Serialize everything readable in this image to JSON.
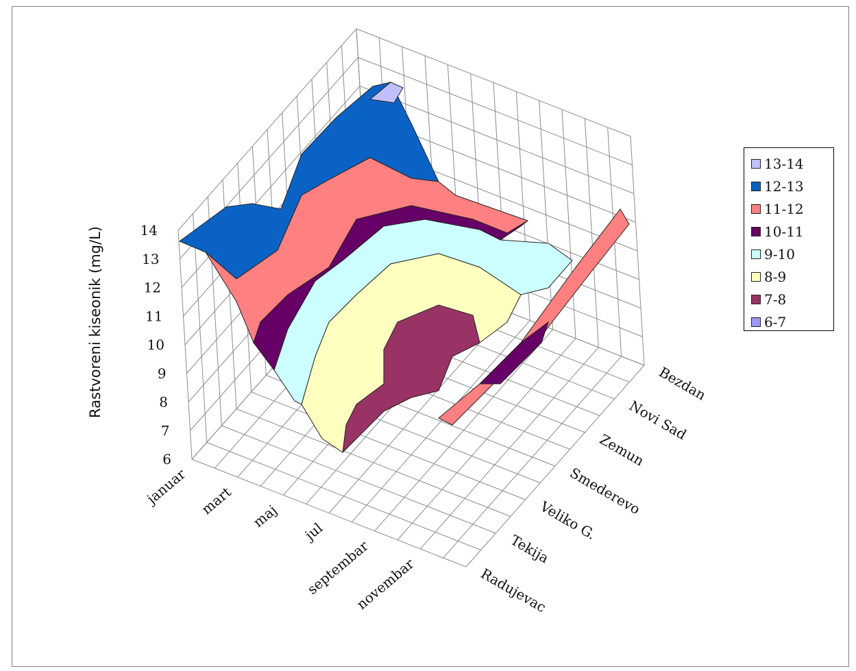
{
  "chart_data": {
    "type": "surface",
    "ylabel": "Rastvoreni kiseonik (mg/L)",
    "zlim": [
      6,
      14
    ],
    "z_ticks": [
      "6",
      "7",
      "8",
      "9",
      "10",
      "11",
      "12",
      "13",
      "14"
    ],
    "month_ticks": [
      "januar",
      "mart",
      "maj",
      "jul",
      "septembar",
      "novembar"
    ],
    "station_ticks": [
      "Bezdan",
      "Novi Sad",
      "Zemun",
      "Smederevo",
      "Veliko G.",
      "Tekija",
      "Radujevac"
    ],
    "grid": true,
    "legend_position": "right",
    "legend": [
      {
        "label": "13-14",
        "color": "#c0c0ff"
      },
      {
        "label": "12-13",
        "color": "#0a62c4"
      },
      {
        "label": "11-12",
        "color": "#ff8080"
      },
      {
        "label": "10-11",
        "color": "#660066"
      },
      {
        "label": "9-10",
        "color": "#ccffff"
      },
      {
        "label": "8-9",
        "color": "#ffffc0"
      },
      {
        "label": "7-8",
        "color": "#993366"
      },
      {
        "label": "6-7",
        "color": "#9999ff"
      }
    ],
    "bands": [
      {
        "name": "12-13",
        "color": "#0a62c4"
      },
      {
        "name": "11-12",
        "color": "#ff8080"
      },
      {
        "name": "10-11",
        "color": "#660066"
      },
      {
        "name": "9-10",
        "color": "#ccffff"
      },
      {
        "name": "8-9",
        "color": "#ffffc0"
      },
      {
        "name": "7-8",
        "color": "#993366"
      }
    ],
    "peak": {
      "name": "13-14",
      "color": "#c0c0ff"
    }
  }
}
